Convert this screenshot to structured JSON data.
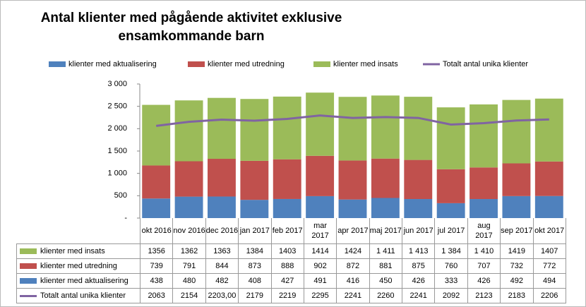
{
  "chart_data": {
    "type": "bar",
    "stacked": true,
    "title": "Antal klienter med pågående aktivitet exklusive ensamkommande barn",
    "categories": [
      "okt 2016",
      "nov 2016",
      "dec 2016",
      "jan 2017",
      "feb 2017",
      "mar 2017",
      "apr 2017",
      "maj 2017",
      "jun 2017",
      "jul 2017",
      "aug 2017",
      "sep 2017",
      "okt 2017"
    ],
    "series": [
      {
        "name": "klienter med aktualisering",
        "color": "#4f81bd",
        "values": [
          438,
          480,
          482,
          408,
          427,
          491,
          416,
          450,
          426,
          333,
          426,
          492,
          494
        ]
      },
      {
        "name": "klienter med utredning",
        "color": "#c0504d",
        "values": [
          739,
          791,
          844,
          873,
          888,
          902,
          872,
          881,
          875,
          760,
          707,
          732,
          772
        ]
      },
      {
        "name": "klienter med insats",
        "color": "#9bbb59",
        "values": [
          1356,
          1362,
          1363,
          1384,
          1403,
          1414,
          1424,
          1411,
          1413,
          1384,
          1410,
          1419,
          1407
        ],
        "value_labels": [
          "1356",
          "1362",
          "1363",
          "1384",
          "1403",
          "1414",
          "1424",
          "1 411",
          "1 413",
          "1 384",
          "1 410",
          "1419",
          "1407"
        ]
      },
      {
        "name": "Totalt antal unika klienter",
        "color": "#8064a2",
        "type": "line",
        "values": [
          2063,
          2154,
          2203,
          2179,
          2219,
          2295,
          2241,
          2260,
          2241,
          2092,
          2123,
          2183,
          2206
        ],
        "value_labels": [
          "2063",
          "2154",
          "2203,00",
          "2179",
          "2219",
          "2295",
          "2241",
          "2260",
          "2241",
          "2092",
          "2123",
          "2183",
          "2206"
        ]
      }
    ],
    "ylim": [
      0,
      3000
    ],
    "yticks": [
      {
        "value": 0,
        "label": "-"
      },
      500,
      {
        "value": 1000,
        "label": "1 000"
      },
      {
        "value": 1500,
        "label": "1 500"
      },
      {
        "value": 2000,
        "label": "2 000"
      },
      {
        "value": 2500,
        "label": "2 500"
      },
      {
        "value": 3000,
        "label": "3 000"
      }
    ],
    "grid": false,
    "legend": "top"
  }
}
